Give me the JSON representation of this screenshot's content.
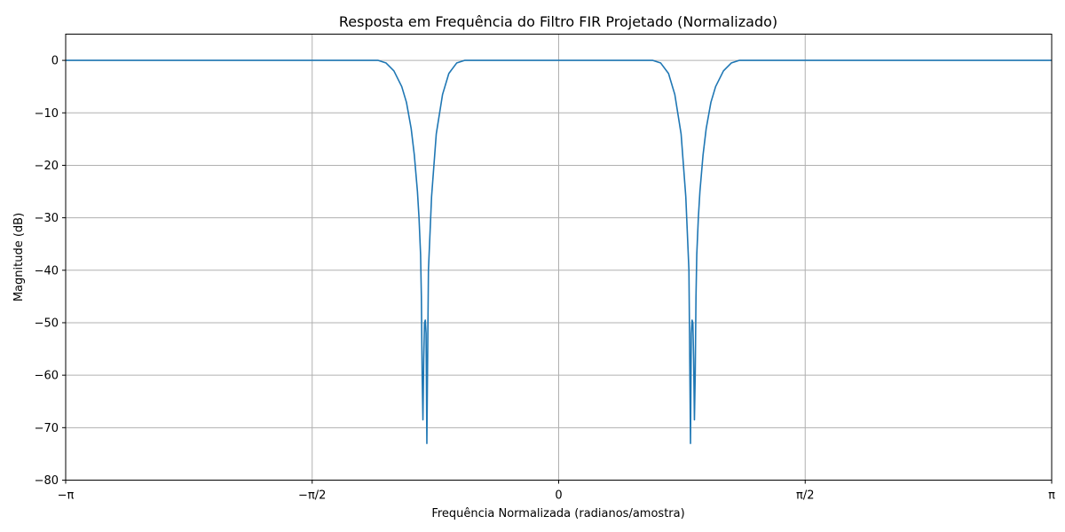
{
  "chart_data": {
    "type": "line",
    "title": "Resposta em Frequência do Filtro FIR Projetado (Normalizado)",
    "xlabel": "Frequência Normalizada (radianos/amostra)",
    "ylabel": "Magnitude (dB)",
    "xlim": [
      -3.14159,
      3.14159
    ],
    "ylim": [
      -80,
      5
    ],
    "grid": true,
    "xticks": [
      {
        "value": -3.14159,
        "label": "−π"
      },
      {
        "value": -1.5708,
        "label": "−π/2"
      },
      {
        "value": 0,
        "label": "0"
      },
      {
        "value": 1.5708,
        "label": "π/2"
      },
      {
        "value": 3.14159,
        "label": "π"
      }
    ],
    "yticks": [
      {
        "value": 0,
        "label": "0"
      },
      {
        "value": -10,
        "label": "−10"
      },
      {
        "value": -20,
        "label": "−20"
      },
      {
        "value": -30,
        "label": "−30"
      },
      {
        "value": -40,
        "label": "−40"
      },
      {
        "value": -50,
        "label": "−50"
      },
      {
        "value": -60,
        "label": "−60"
      },
      {
        "value": -70,
        "label": "−70"
      },
      {
        "value": -80,
        "label": "−80"
      }
    ],
    "series": [
      {
        "color": "#1f77b4",
        "x": [
          -3.1416,
          -2.5,
          -2.0,
          -1.3,
          -1.15,
          -1.1,
          -1.05,
          -1.0,
          -0.97,
          -0.94,
          -0.92,
          -0.9,
          -0.89,
          -0.88,
          -0.875,
          -0.87,
          -0.865,
          -0.86,
          -0.855,
          -0.85,
          -0.845,
          -0.84,
          -0.83,
          -0.81,
          -0.78,
          -0.74,
          -0.7,
          -0.65,
          -0.6,
          -0.55,
          -0.5,
          -0.45,
          -0.4,
          0,
          0.4,
          0.45,
          0.5,
          0.55,
          0.6,
          0.65,
          0.7,
          0.74,
          0.78,
          0.81,
          0.83,
          0.84,
          0.845,
          0.85,
          0.855,
          0.86,
          0.865,
          0.87,
          0.875,
          0.88,
          0.89,
          0.9,
          0.92,
          0.94,
          0.97,
          1.0,
          1.05,
          1.1,
          1.15,
          1.3,
          2.0,
          2.5,
          3.1416
        ],
        "y": [
          0,
          0,
          0,
          0,
          0,
          -0.5,
          -2,
          -5,
          -8,
          -13,
          -18,
          -25,
          -30,
          -37,
          -45,
          -60,
          -68.5,
          -57,
          -50,
          -49.5,
          -52,
          -73,
          -40,
          -26,
          -14,
          -6.5,
          -2.5,
          -0.5,
          0,
          0,
          0,
          0,
          0,
          0,
          0,
          0,
          0,
          0,
          0,
          -0.5,
          -2.5,
          -6.5,
          -14,
          -26,
          -40,
          -73,
          -52,
          -49.5,
          -50,
          -57,
          -68.5,
          -60,
          -45,
          -37,
          -30,
          -25,
          -18,
          -13,
          -8,
          -5,
          -2,
          -0.5,
          0,
          0,
          0,
          0,
          0
        ]
      }
    ]
  }
}
